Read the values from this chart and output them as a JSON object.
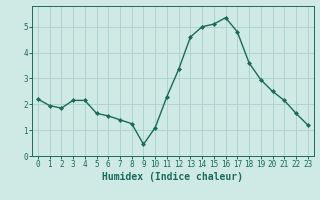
{
  "x": [
    0,
    1,
    2,
    3,
    4,
    5,
    6,
    7,
    8,
    9,
    10,
    11,
    12,
    13,
    14,
    15,
    16,
    17,
    18,
    19,
    20,
    21,
    22,
    23
  ],
  "y": [
    2.2,
    1.95,
    1.85,
    2.15,
    2.15,
    1.65,
    1.55,
    1.4,
    1.25,
    0.45,
    1.1,
    2.3,
    3.35,
    4.6,
    5.0,
    5.1,
    5.35,
    4.8,
    3.6,
    2.95,
    2.5,
    2.15,
    1.65,
    1.2
  ],
  "line_color": "#1a6b5a",
  "marker": "D",
  "marker_size": 2.0,
  "bg_color": "#cfe9e5",
  "grid_color": "#aed4cf",
  "xlabel": "Humidex (Indice chaleur)",
  "ylim": [
    0,
    5.8
  ],
  "xlim": [
    -0.5,
    23.5
  ],
  "yticks": [
    0,
    1,
    2,
    3,
    4,
    5
  ],
  "xticks": [
    0,
    1,
    2,
    3,
    4,
    5,
    6,
    7,
    8,
    9,
    10,
    11,
    12,
    13,
    14,
    15,
    16,
    17,
    18,
    19,
    20,
    21,
    22,
    23
  ],
  "tick_color": "#1a6b5a",
  "label_color": "#1a6b5a",
  "xlabel_fontsize": 7,
  "tick_fontsize": 5.5,
  "linewidth": 1.0
}
